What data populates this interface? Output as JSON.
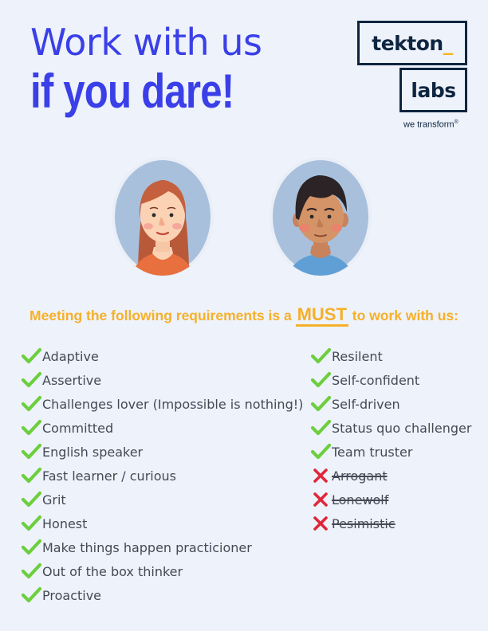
{
  "header": {
    "title_line1": "Work with us",
    "title_line2": "if you dare!"
  },
  "logo": {
    "word1": "tekton",
    "underscore": "_",
    "word2": "labs",
    "tagline": "we transform",
    "tagline_mark": "®"
  },
  "colors": {
    "title_blue": "#3a3fe8",
    "logo_navy": "#0e2540",
    "accent_yellow": "#f5b02a",
    "check_green": "#6ccf3e",
    "cross_red": "#e0263a",
    "avatar_bg": "#a8c0dc"
  },
  "requirements": {
    "heading_before": "Meeting the following requirements is a",
    "heading_emphasis": "MUST",
    "heading_after": "to work with us:",
    "left": [
      {
        "label": "Adaptive",
        "icon": "check-icon"
      },
      {
        "label": "Assertive",
        "icon": "check-icon"
      },
      {
        "label": "Challenges lover (Impossible is nothing!)",
        "icon": "check-icon"
      },
      {
        "label": "Committed",
        "icon": "check-icon"
      },
      {
        "label": "English speaker",
        "icon": "check-icon"
      },
      {
        "label": "Fast learner / curious",
        "icon": "check-icon"
      },
      {
        "label": "Grit",
        "icon": "check-icon"
      },
      {
        "label": "Honest",
        "icon": "check-icon"
      },
      {
        "label": "Make things happen practicioner",
        "icon": "check-icon"
      },
      {
        "label": "Out of the box thinker",
        "icon": "check-icon"
      },
      {
        "label": "Proactive",
        "icon": "check-icon"
      }
    ],
    "right": [
      {
        "label": "Resilent",
        "icon": "check-icon"
      },
      {
        "label": "Self-confident",
        "icon": "check-icon"
      },
      {
        "label": "Self-driven",
        "icon": "check-icon"
      },
      {
        "label": "Status quo challenger",
        "icon": "check-icon"
      },
      {
        "label": "Team truster",
        "icon": "check-icon"
      },
      {
        "label": "Arrogant ",
        "icon": "cross-icon"
      },
      {
        "label": "Lonewolf",
        "icon": "cross-icon"
      },
      {
        "label": "Pesimistic",
        "icon": "cross-icon"
      }
    ]
  }
}
